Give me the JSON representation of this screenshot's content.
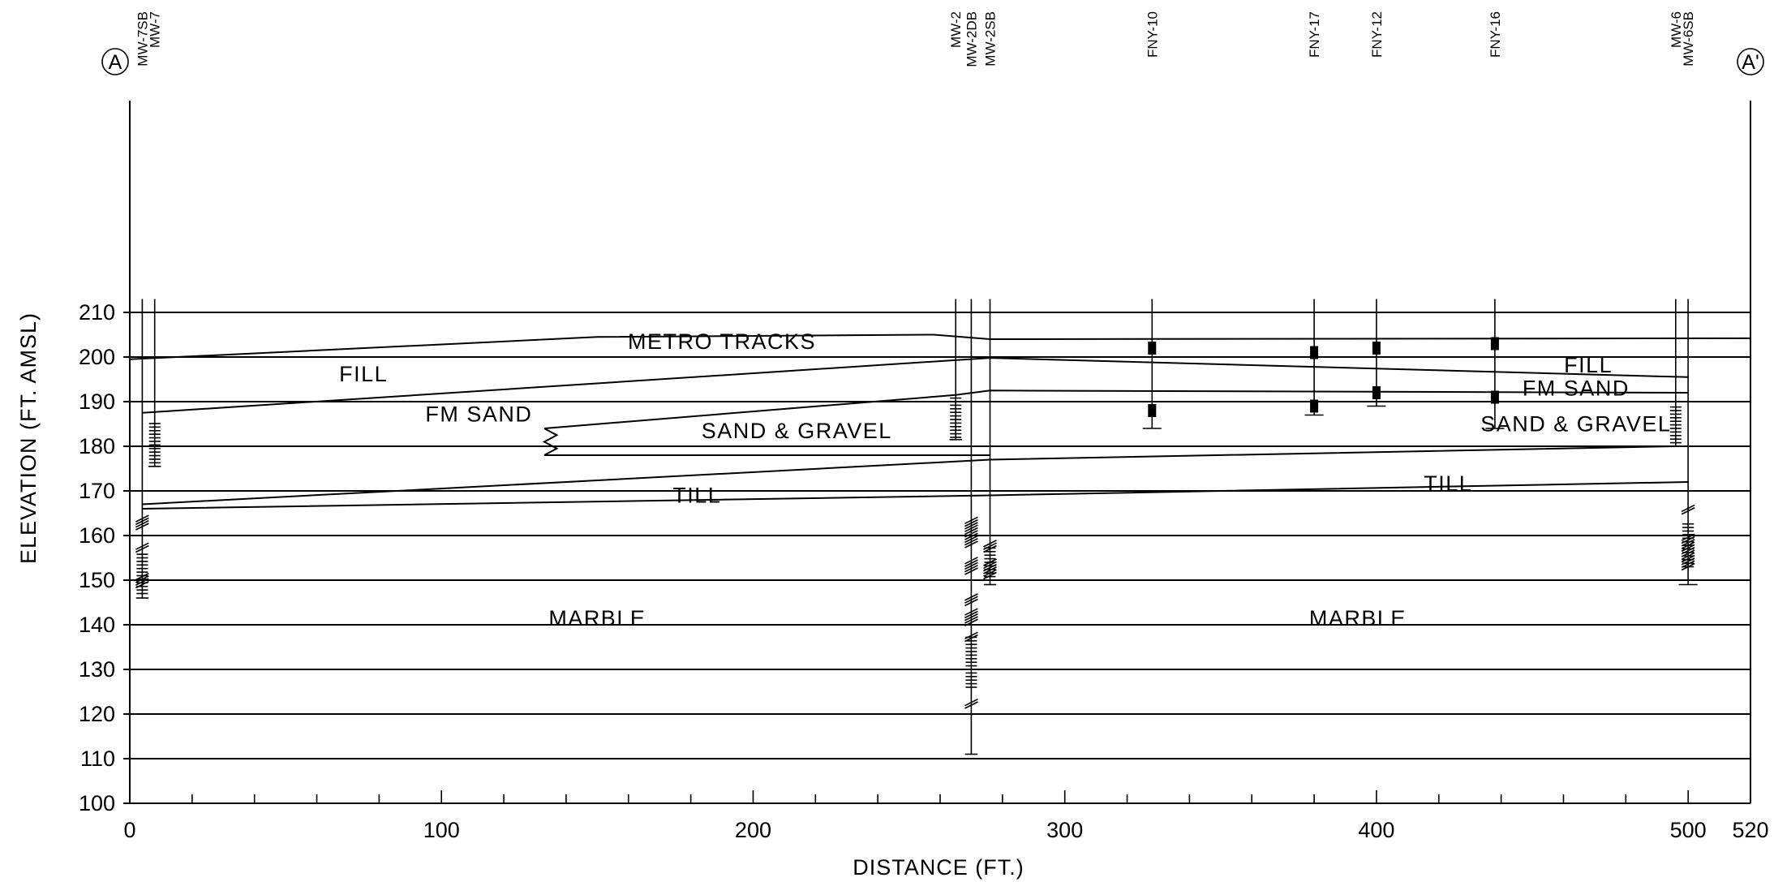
{
  "section": {
    "marker_start": "A",
    "marker_end": "A'",
    "x_axis_title": "DISTANCE (FT.)",
    "y_axis_title": "ELEVATION (FT. AMSL)",
    "x_ticks": [
      "0",
      "100",
      "200",
      "300",
      "400",
      "500",
      "520"
    ],
    "y_ticks": [
      "100",
      "110",
      "120",
      "130",
      "140",
      "150",
      "160",
      "170",
      "180",
      "190",
      "200",
      "210"
    ]
  },
  "layer_labels": [
    {
      "text": "METRO TRACKS",
      "x": 190,
      "elev": 203.5
    },
    {
      "text": "FILL",
      "x": 75,
      "elev": 196.2
    },
    {
      "text": "FILL",
      "x": 468,
      "elev": 198.2
    },
    {
      "text": "FM SAND",
      "x": 112,
      "elev": 187.2
    },
    {
      "text": "FM SAND",
      "x": 464,
      "elev": 193.0
    },
    {
      "text": "SAND & GRAVEL",
      "x": 214,
      "elev": 183.5
    },
    {
      "text": "SAND & GRAVEL",
      "x": 464,
      "elev": 185.0
    },
    {
      "text": "TILL",
      "x": 182,
      "elev": 169.0
    },
    {
      "text": "TILL",
      "x": 423,
      "elev": 171.6
    },
    {
      "text": "MARBLE",
      "x": 150,
      "elev": 141.5
    },
    {
      "text": "MARBLE",
      "x": 394,
      "elev": 141.5
    }
  ],
  "wells": [
    {
      "name": "MW-7SB",
      "x": 4
    },
    {
      "name": "MW-7",
      "x": 8
    },
    {
      "name": "MW-2",
      "x": 265
    },
    {
      "name": "MW-2DB",
      "x": 270
    },
    {
      "name": "MW-2SB",
      "x": 276
    },
    {
      "name": "FNY-10",
      "x": 328
    },
    {
      "name": "FNY-17",
      "x": 380
    },
    {
      "name": "FNY-12",
      "x": 400
    },
    {
      "name": "FNY-16",
      "x": 438
    },
    {
      "name": "MW-6",
      "x": 496
    },
    {
      "name": "MW-6SB",
      "x": 500
    }
  ],
  "colors": {
    "line": "#000000",
    "background": "#ffffff"
  }
}
